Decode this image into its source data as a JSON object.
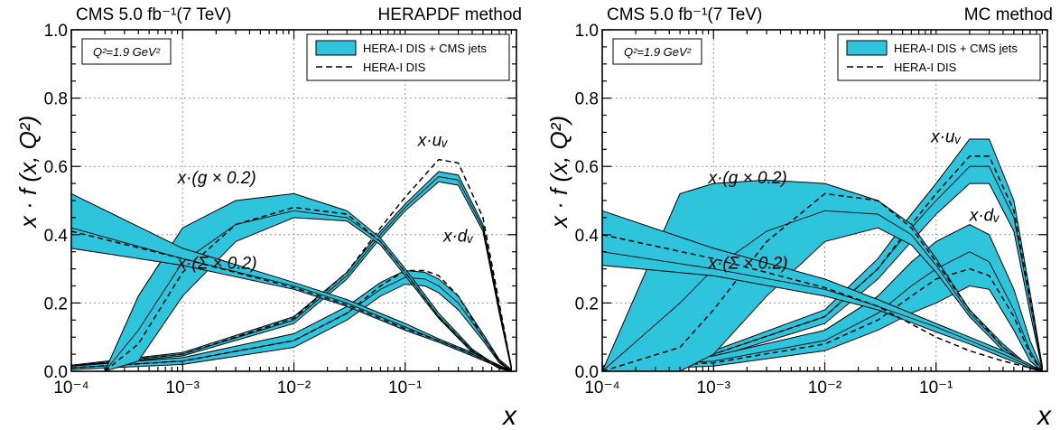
{
  "figure": {
    "xlabel": "x",
    "ylabel": "x · f (x, Q²)",
    "q2_box": "Q²=1.9 GeV²"
  },
  "chart_data": [
    {
      "type": "area",
      "header_left": "CMS   5.0 fb⁻¹(7 TeV)",
      "title": "HERAPDF method",
      "xlabel": "x",
      "ylabel": "x · f (x, Q²)",
      "xscale": "log",
      "xlim": [
        0.0001,
        1
      ],
      "ylim": [
        0,
        1
      ],
      "x_ticks": [
        "10⁻⁴",
        "10⁻³",
        "10⁻²",
        "10⁻¹"
      ],
      "y_ticks": [
        "0.0",
        "0.2",
        "0.4",
        "0.6",
        "0.8",
        "1.0"
      ],
      "grid": true,
      "legend": {
        "placement": "top-right",
        "entries": [
          {
            "label": "HERA-I DIS + CMS jets",
            "style": "band",
            "color": "#2ec4dc"
          },
          {
            "label": "HERA-I DIS",
            "style": "dashed",
            "color": "#000000"
          }
        ]
      },
      "q2_label": "Q²=1.9 GeV²",
      "series": [
        {
          "name": "x·uᵥ",
          "x": [
            0.0001,
            0.001,
            0.01,
            0.03,
            0.06,
            0.1,
            0.2,
            0.3,
            0.5,
            0.7,
            0.9
          ],
          "central": [
            0.015,
            0.05,
            0.15,
            0.28,
            0.4,
            0.48,
            0.57,
            0.56,
            0.42,
            0.18,
            0.01
          ],
          "lower": [
            0.012,
            0.045,
            0.14,
            0.27,
            0.39,
            0.47,
            0.555,
            0.545,
            0.41,
            0.17,
            0.005
          ],
          "upper": [
            0.018,
            0.055,
            0.16,
            0.29,
            0.41,
            0.49,
            0.585,
            0.575,
            0.43,
            0.19,
            0.015
          ],
          "reference": [
            0.015,
            0.05,
            0.155,
            0.29,
            0.42,
            0.51,
            0.62,
            0.61,
            0.45,
            0.2,
            0.01
          ]
        },
        {
          "name": "x·dᵥ",
          "x": [
            0.0001,
            0.001,
            0.01,
            0.03,
            0.06,
            0.1,
            0.15,
            0.2,
            0.3,
            0.5,
            0.7,
            0.9
          ],
          "central": [
            0.01,
            0.03,
            0.09,
            0.17,
            0.24,
            0.275,
            0.27,
            0.25,
            0.2,
            0.1,
            0.03,
            0.0
          ],
          "lower": [
            0.005,
            0.02,
            0.07,
            0.15,
            0.22,
            0.255,
            0.25,
            0.23,
            0.18,
            0.09,
            0.025,
            0.0
          ],
          "upper": [
            0.015,
            0.04,
            0.11,
            0.19,
            0.26,
            0.295,
            0.29,
            0.27,
            0.22,
            0.11,
            0.035,
            0.005
          ],
          "reference": [
            0.01,
            0.03,
            0.09,
            0.17,
            0.25,
            0.295,
            0.295,
            0.28,
            0.22,
            0.1,
            0.03,
            0.0
          ]
        },
        {
          "name": "x·(g × 0.2)",
          "x": [
            0.0002,
            0.0004,
            0.001,
            0.003,
            0.01,
            0.03,
            0.06,
            0.1,
            0.2,
            0.4,
            0.7,
            0.9
          ],
          "central": [
            0.0,
            0.12,
            0.32,
            0.43,
            0.47,
            0.45,
            0.38,
            0.29,
            0.16,
            0.06,
            0.01,
            0.0
          ],
          "lower": [
            0.0,
            0.03,
            0.22,
            0.38,
            0.45,
            0.44,
            0.37,
            0.28,
            0.155,
            0.055,
            0.008,
            0.0
          ],
          "upper": [
            0.0,
            0.22,
            0.42,
            0.5,
            0.52,
            0.47,
            0.39,
            0.3,
            0.17,
            0.065,
            0.012,
            0.0
          ],
          "reference": [
            0.0,
            0.08,
            0.29,
            0.43,
            0.48,
            0.46,
            0.38,
            0.29,
            0.16,
            0.06,
            0.01,
            0.0
          ]
        },
        {
          "name": "x·(Σ × 0.2)",
          "x": [
            0.0001,
            0.001,
            0.01,
            0.03,
            0.1,
            0.2,
            0.4,
            0.7,
            0.9
          ],
          "central": [
            0.42,
            0.33,
            0.25,
            0.2,
            0.13,
            0.09,
            0.05,
            0.015,
            0.0
          ],
          "lower": [
            0.36,
            0.31,
            0.24,
            0.19,
            0.12,
            0.085,
            0.045,
            0.012,
            0.0
          ],
          "upper": [
            0.52,
            0.36,
            0.26,
            0.21,
            0.14,
            0.095,
            0.055,
            0.018,
            0.0
          ],
          "reference": [
            0.41,
            0.33,
            0.245,
            0.195,
            0.125,
            0.09,
            0.05,
            0.015,
            0.0
          ]
        }
      ],
      "annotations": [
        "x·uᵥ",
        "x·dᵥ",
        "x·(g × 0.2)",
        "x·(Σ × 0.2)"
      ]
    },
    {
      "type": "area",
      "header_left": "CMS   5.0 fb⁻¹(7 TeV)",
      "title": "MC method",
      "xlabel": "x",
      "ylabel": "x · f (x, Q²)",
      "xscale": "log",
      "xlim": [
        0.0001,
        1
      ],
      "ylim": [
        0,
        1
      ],
      "x_ticks": [
        "10⁻⁴",
        "10⁻³",
        "10⁻²",
        "10⁻¹"
      ],
      "y_ticks": [
        "0.0",
        "0.2",
        "0.4",
        "0.6",
        "0.8",
        "1.0"
      ],
      "grid": true,
      "legend": {
        "placement": "top-right",
        "entries": [
          {
            "label": "HERA-I DIS + CMS jets",
            "style": "band",
            "color": "#2ec4dc"
          },
          {
            "label": "HERA-I DIS",
            "style": "dashed",
            "color": "#000000"
          }
        ]
      },
      "q2_label": "Q²=1.9 GeV²",
      "series": [
        {
          "name": "x·uᵥ",
          "x": [
            0.0001,
            0.001,
            0.01,
            0.03,
            0.06,
            0.1,
            0.2,
            0.3,
            0.5,
            0.7,
            0.9
          ],
          "central": [
            0.012,
            0.05,
            0.16,
            0.3,
            0.42,
            0.5,
            0.6,
            0.6,
            0.45,
            0.2,
            0.01
          ],
          "lower": [
            0.008,
            0.04,
            0.14,
            0.27,
            0.38,
            0.46,
            0.55,
            0.55,
            0.41,
            0.17,
            0.005
          ],
          "upper": [
            0.016,
            0.06,
            0.18,
            0.33,
            0.46,
            0.55,
            0.68,
            0.68,
            0.5,
            0.23,
            0.015
          ],
          "reference": [
            0.012,
            0.05,
            0.16,
            0.3,
            0.43,
            0.52,
            0.63,
            0.63,
            0.47,
            0.21,
            0.01
          ]
        },
        {
          "name": "x·dᵥ",
          "x": [
            0.0001,
            0.001,
            0.01,
            0.03,
            0.06,
            0.1,
            0.2,
            0.3,
            0.5,
            0.7,
            0.9
          ],
          "central": [
            0.008,
            0.03,
            0.09,
            0.17,
            0.25,
            0.3,
            0.35,
            0.32,
            0.18,
            0.06,
            0.0
          ],
          "lower": [
            0.003,
            0.015,
            0.06,
            0.12,
            0.17,
            0.2,
            0.25,
            0.24,
            0.12,
            0.03,
            0.0
          ],
          "upper": [
            0.013,
            0.045,
            0.12,
            0.22,
            0.32,
            0.38,
            0.43,
            0.4,
            0.24,
            0.09,
            0.005
          ],
          "reference": [
            0.008,
            0.025,
            0.08,
            0.15,
            0.22,
            0.27,
            0.3,
            0.28,
            0.16,
            0.05,
            0.0
          ]
        },
        {
          "name": "x·(g × 0.2)",
          "x": [
            0.0001,
            0.0005,
            0.001,
            0.003,
            0.01,
            0.03,
            0.06,
            0.1,
            0.2,
            0.4,
            0.7,
            0.9
          ],
          "central": [
            0.0,
            0.2,
            0.3,
            0.41,
            0.47,
            0.46,
            0.4,
            0.31,
            0.17,
            0.07,
            0.01,
            0.0
          ],
          "lower": [
            0.0,
            0.0,
            0.05,
            0.22,
            0.38,
            0.42,
            0.37,
            0.29,
            0.16,
            0.06,
            0.008,
            0.0
          ],
          "upper": [
            0.0,
            0.52,
            0.55,
            0.56,
            0.55,
            0.5,
            0.43,
            0.33,
            0.18,
            0.08,
            0.012,
            0.0
          ],
          "reference": [
            0.0,
            0.07,
            0.18,
            0.38,
            0.52,
            0.5,
            0.42,
            0.32,
            0.18,
            0.07,
            0.01,
            0.0
          ]
        },
        {
          "name": "x·(Σ × 0.2)",
          "x": [
            0.0001,
            0.001,
            0.01,
            0.03,
            0.1,
            0.2,
            0.4,
            0.7,
            0.9
          ],
          "central": [
            0.35,
            0.3,
            0.24,
            0.19,
            0.13,
            0.09,
            0.05,
            0.015,
            0.0
          ],
          "lower": [
            0.31,
            0.28,
            0.22,
            0.18,
            0.115,
            0.08,
            0.04,
            0.01,
            0.0
          ],
          "upper": [
            0.47,
            0.36,
            0.27,
            0.21,
            0.14,
            0.1,
            0.06,
            0.02,
            0.0
          ],
          "reference": [
            0.4,
            0.33,
            0.245,
            0.19,
            0.1,
            0.06,
            0.03,
            0.01,
            0.0
          ]
        }
      ],
      "annotations": [
        "x·uᵥ",
        "x·dᵥ",
        "x·(g × 0.2)",
        "x·(Σ × 0.2)"
      ]
    }
  ]
}
